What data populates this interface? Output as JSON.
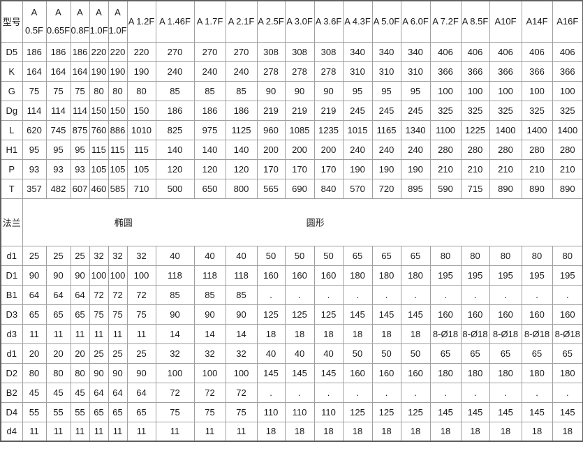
{
  "chart_data": {
    "type": "table",
    "corner_label": "型号",
    "columns": [
      "A 0.5F",
      "A 0.65F",
      "A 0.8F",
      "A 1.0F",
      "A 1.0F",
      "A 1.2F",
      "A 1.46F",
      "A 1.7F",
      "A 2.1F",
      "A 2.5F",
      "A 3.0F",
      "A 3.6F",
      "A 4.3F",
      "A 5.0F",
      "A 6.0F",
      "A 7.2F",
      "A 8.5F",
      "A10F",
      "A14F",
      "A16F"
    ],
    "rows_top": [
      {
        "label": "D5",
        "values": [
          "186",
          "186",
          "186",
          "220",
          "220",
          "220",
          "270",
          "270",
          "270",
          "308",
          "308",
          "308",
          "340",
          "340",
          "340",
          "406",
          "406",
          "406",
          "406",
          "406"
        ]
      },
      {
        "label": "K",
        "values": [
          "164",
          "164",
          "164",
          "190",
          "190",
          "190",
          "240",
          "240",
          "240",
          "278",
          "278",
          "278",
          "310",
          "310",
          "310",
          "366",
          "366",
          "366",
          "366",
          "366"
        ]
      },
      {
        "label": "G",
        "values": [
          "75",
          "75",
          "75",
          "80",
          "80",
          "80",
          "85",
          "85",
          "85",
          "90",
          "90",
          "90",
          "95",
          "95",
          "95",
          "100",
          "100",
          "100",
          "100",
          "100"
        ]
      },
      {
        "label": "Dg",
        "values": [
          "114",
          "114",
          "114",
          "150",
          "150",
          "150",
          "186",
          "186",
          "186",
          "219",
          "219",
          "219",
          "245",
          "245",
          "245",
          "325",
          "325",
          "325",
          "325",
          "325"
        ]
      },
      {
        "label": "L",
        "values": [
          "620",
          "745",
          "875",
          "760",
          "886",
          "1010",
          "825",
          "975",
          "1125",
          "960",
          "1085",
          "1235",
          "1015",
          "1165",
          "1340",
          "1100",
          "1225",
          "1400",
          "1400",
          "1400"
        ]
      },
      {
        "label": "H1",
        "values": [
          "95",
          "95",
          "95",
          "115",
          "115",
          "115",
          "140",
          "140",
          "140",
          "200",
          "200",
          "200",
          "240",
          "240",
          "240",
          "280",
          "280",
          "280",
          "280",
          "280"
        ]
      },
      {
        "label": "P",
        "values": [
          "93",
          "93",
          "93",
          "105",
          "105",
          "105",
          "120",
          "120",
          "120",
          "170",
          "170",
          "170",
          "190",
          "190",
          "190",
          "210",
          "210",
          "210",
          "210",
          "210"
        ]
      },
      {
        "label": "T",
        "values": [
          "357",
          "482",
          "607",
          "460",
          "585",
          "710",
          "500",
          "650",
          "800",
          "565",
          "690",
          "840",
          "570",
          "720",
          "895",
          "590",
          "715",
          "890",
          "890",
          "890"
        ]
      }
    ],
    "flange_row": {
      "label": "法兰",
      "oval_label": "椭圆",
      "round_label": "圆形"
    },
    "rows_bottom": [
      {
        "label": "d1",
        "values": [
          "25",
          "25",
          "25",
          "32",
          "32",
          "32",
          "40",
          "40",
          "40",
          "50",
          "50",
          "50",
          "65",
          "65",
          "65",
          "80",
          "80",
          "80",
          "80",
          "80"
        ]
      },
      {
        "label": "D1",
        "values": [
          "90",
          "90",
          "90",
          "100",
          "100",
          "100",
          "118",
          "118",
          "118",
          "160",
          "160",
          "160",
          "180",
          "180",
          "180",
          "195",
          "195",
          "195",
          "195",
          "195"
        ]
      },
      {
        "label": "B1",
        "values": [
          "64",
          "64",
          "64",
          "72",
          "72",
          "72",
          "85",
          "85",
          "85",
          ".",
          ".",
          ".",
          ".",
          ".",
          ".",
          ".",
          ".",
          ".",
          ".",
          "."
        ]
      },
      {
        "label": "D3",
        "values": [
          "65",
          "65",
          "65",
          "75",
          "75",
          "75",
          "90",
          "90",
          "90",
          "125",
          "125",
          "125",
          "145",
          "145",
          "145",
          "160",
          "160",
          "160",
          "160",
          "160"
        ]
      },
      {
        "label": "d3",
        "values": [
          "11",
          "11",
          "11",
          "11",
          "11",
          "11",
          "14",
          "14",
          "14",
          "18",
          "18",
          "18",
          "18",
          "18",
          "18",
          "8-Ø18",
          "8-Ø18",
          "8-Ø18",
          "8-Ø18",
          "8-Ø18"
        ]
      },
      {
        "label": "d1",
        "values": [
          "20",
          "20",
          "20",
          "25",
          "25",
          "25",
          "32",
          "32",
          "32",
          "40",
          "40",
          "40",
          "50",
          "50",
          "50",
          "65",
          "65",
          "65",
          "65",
          "65"
        ]
      },
      {
        "label": "D2",
        "values": [
          "80",
          "80",
          "80",
          "90",
          "90",
          "90",
          "100",
          "100",
          "100",
          "145",
          "145",
          "145",
          "160",
          "160",
          "160",
          "180",
          "180",
          "180",
          "180",
          "180"
        ]
      },
      {
        "label": "B2",
        "values": [
          "45",
          "45",
          "45",
          "64",
          "64",
          "64",
          "72",
          "72",
          "72",
          ".",
          ".",
          ".",
          ".",
          ".",
          ".",
          ".",
          ".",
          ".",
          ".",
          "."
        ]
      },
      {
        "label": "D4",
        "values": [
          "55",
          "55",
          "55",
          "65",
          "65",
          "65",
          "75",
          "75",
          "75",
          "110",
          "110",
          "110",
          "125",
          "125",
          "125",
          "145",
          "145",
          "145",
          "145",
          "145"
        ]
      },
      {
        "label": "d4",
        "values": [
          "11",
          "11",
          "11",
          "11",
          "11",
          "11",
          "11",
          "11",
          "11",
          "18",
          "18",
          "18",
          "18",
          "18",
          "18",
          "18",
          "18",
          "18",
          "18",
          "18"
        ]
      }
    ]
  },
  "colors": {
    "border_outer": "#5f5f5f",
    "border_inner": "#a0a0a0",
    "text": "#1a1a1a",
    "background": "#ffffff"
  }
}
